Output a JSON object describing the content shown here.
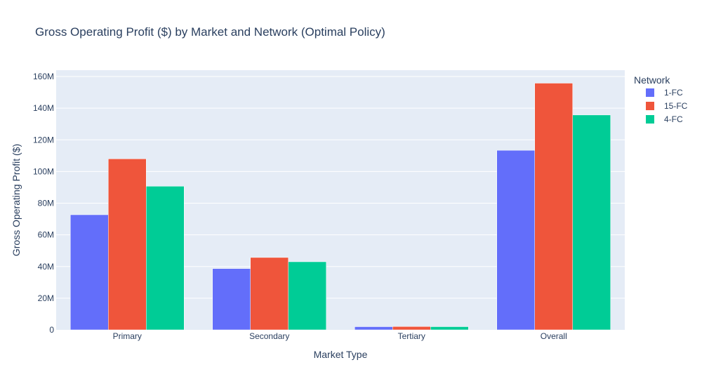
{
  "chart_data": {
    "type": "bar",
    "title": "Gross Operating Profit ($) by Market and Network (Optimal Policy)",
    "xlabel": "Market Type",
    "ylabel": "Gross Operating Profit ($)",
    "categories": [
      "Primary",
      "Secondary",
      "Tertiary",
      "Overall"
    ],
    "series": [
      {
        "name": "1-FC",
        "color": "#636efa",
        "values": [
          72700000,
          38700000,
          2000000,
          113400000
        ]
      },
      {
        "name": "15-FC",
        "color": "#ef553b",
        "values": [
          108000000,
          45700000,
          2100000,
          155800000
        ]
      },
      {
        "name": "4-FC",
        "color": "#00cc96",
        "values": [
          90700000,
          43000000,
          2000000,
          135700000
        ]
      }
    ],
    "ylim": [
      0,
      164000000
    ],
    "yticks": [
      0,
      20000000,
      40000000,
      60000000,
      80000000,
      100000000,
      120000000,
      140000000,
      160000000
    ],
    "ytick_labels": [
      "0",
      "20M",
      "40M",
      "60M",
      "80M",
      "100M",
      "120M",
      "140M",
      "160M"
    ],
    "legend": {
      "title": "Network",
      "placement": "right"
    },
    "grid": true,
    "plot_background": "#e5ecf6"
  }
}
